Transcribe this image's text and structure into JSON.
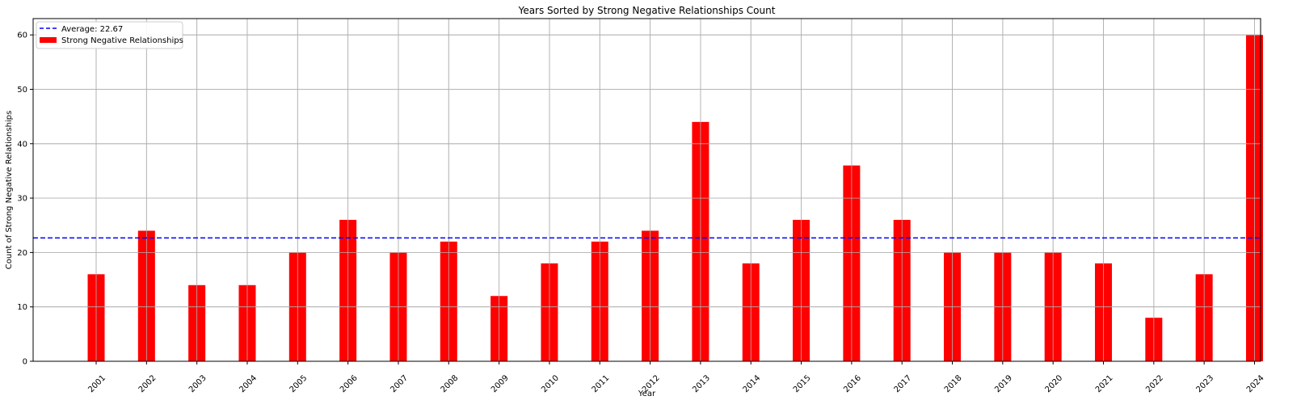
{
  "chart_data": {
    "type": "bar",
    "title": "Years Sorted by Strong Negative Relationships Count",
    "xlabel": "Year",
    "ylabel": "Count of Strong Negative Relationships",
    "categories": [
      "2001",
      "2002",
      "2003",
      "2004",
      "2005",
      "2006",
      "2007",
      "2008",
      "2009",
      "2010",
      "2011",
      "2012",
      "2013",
      "2014",
      "2015",
      "2016",
      "2017",
      "2018",
      "2019",
      "2020",
      "2021",
      "2022",
      "2023",
      "2024"
    ],
    "series": [
      {
        "name": "Strong Negative Relationships",
        "color": "#ff0000",
        "values": [
          16,
          24,
          14,
          14,
          20,
          26,
          20,
          22,
          12,
          18,
          22,
          24,
          44,
          18,
          26,
          36,
          26,
          20,
          20,
          20,
          18,
          8,
          16,
          60
        ]
      }
    ],
    "average": {
      "label": "Average: 22.67",
      "value": 22.67,
      "color": "#0000ff",
      "style": "dashed"
    },
    "ylim": [
      0,
      63
    ],
    "yticks": [
      0,
      10,
      20,
      30,
      40,
      50,
      60
    ],
    "grid": true,
    "legend_position": "top-left"
  }
}
